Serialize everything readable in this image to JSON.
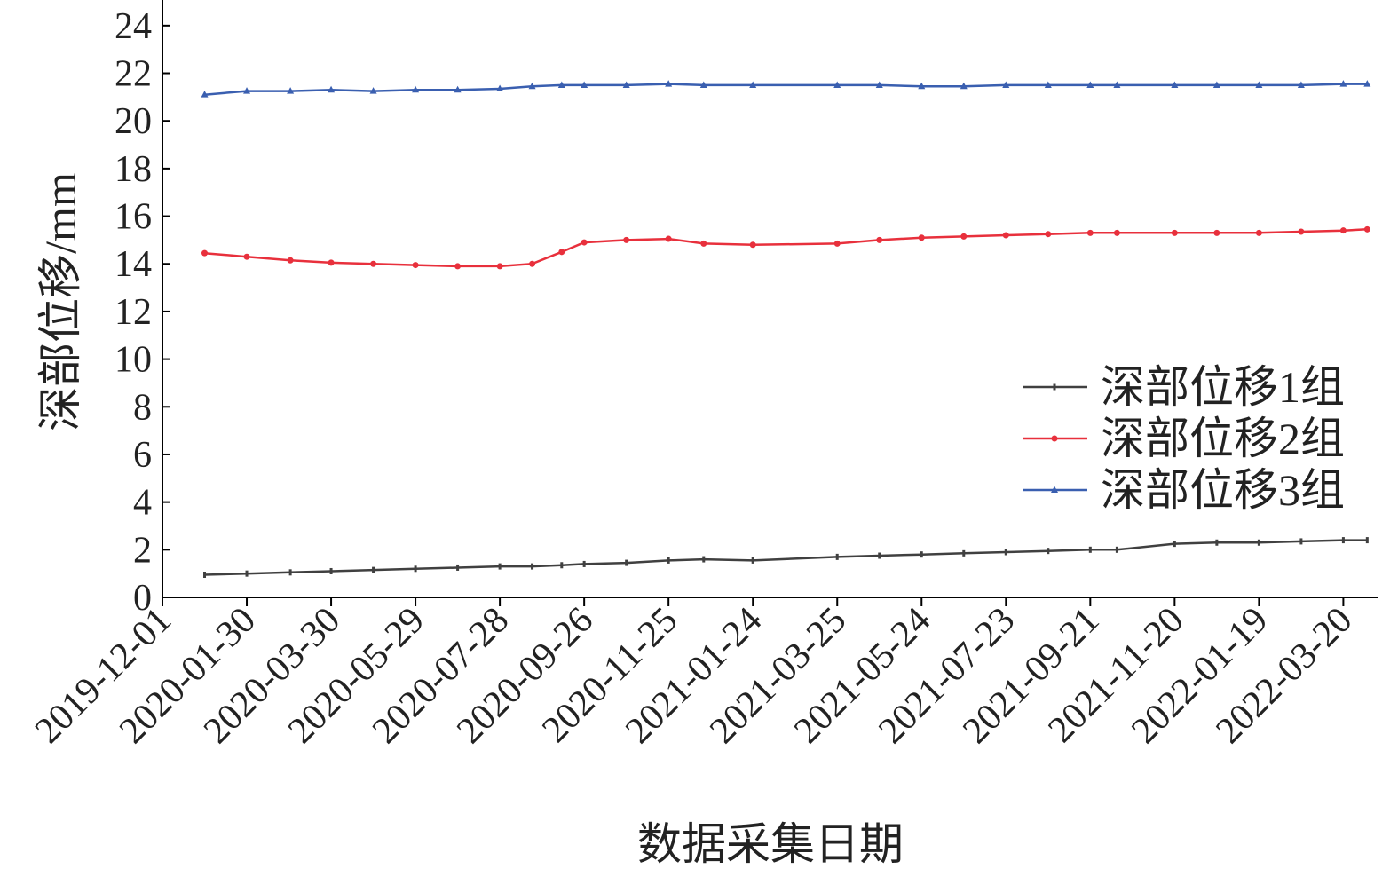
{
  "chart_data": {
    "type": "line",
    "x_label": "数据采集日期",
    "y_label": "深部位移/mm",
    "x": [
      "2019-12-31",
      "2020-01-30",
      "2020-03-01",
      "2020-03-30",
      "2020-04-29",
      "2020-05-29",
      "2020-06-28",
      "2020-07-28",
      "2020-08-20",
      "2020-09-10",
      "2020-09-26",
      "2020-10-26",
      "2020-11-25",
      "2020-12-20",
      "2021-01-24",
      "2021-03-25",
      "2021-04-24",
      "2021-05-24",
      "2021-06-23",
      "2021-07-23",
      "2021-08-22",
      "2021-09-21",
      "2021-10-10",
      "2021-11-20",
      "2021-12-20",
      "2022-01-19",
      "2022-02-18",
      "2022-03-20",
      "2022-04-06"
    ],
    "series": [
      {
        "name": "深部位移1组",
        "color": "#404040",
        "marker": "tick",
        "values": [
          0.95,
          1.0,
          1.05,
          1.1,
          1.15,
          1.2,
          1.25,
          1.3,
          1.3,
          1.35,
          1.4,
          1.45,
          1.55,
          1.6,
          1.55,
          1.7,
          1.75,
          1.8,
          1.85,
          1.9,
          1.95,
          2.0,
          2.0,
          2.25,
          2.3,
          2.3,
          2.35,
          2.4,
          2.4
        ]
      },
      {
        "name": "深部位移2组",
        "color": "#e8303c",
        "marker": "circle",
        "values": [
          14.45,
          14.3,
          14.15,
          14.05,
          14.0,
          13.95,
          13.9,
          13.9,
          14.0,
          14.5,
          14.9,
          15.0,
          15.05,
          14.85,
          14.8,
          14.85,
          15.0,
          15.1,
          15.15,
          15.2,
          15.25,
          15.3,
          15.3,
          15.3,
          15.3,
          15.3,
          15.35,
          15.4,
          15.45
        ]
      },
      {
        "name": "深部位移3组",
        "color": "#3a5fb0",
        "marker": "triangle",
        "values": [
          21.1,
          21.25,
          21.25,
          21.3,
          21.25,
          21.3,
          21.3,
          21.35,
          21.45,
          21.5,
          21.5,
          21.5,
          21.55,
          21.5,
          21.5,
          21.5,
          21.5,
          21.45,
          21.45,
          21.5,
          21.5,
          21.5,
          21.5,
          21.5,
          21.5,
          21.5,
          21.5,
          21.55,
          21.55
        ]
      }
    ],
    "xlim": [
      "2019-12-01",
      "2022-04-14"
    ],
    "xticks": [
      "2019-12-01",
      "2020-01-30",
      "2020-03-30",
      "2020-05-29",
      "2020-07-28",
      "2020-09-26",
      "2020-11-25",
      "2021-01-24",
      "2021-03-25",
      "2021-05-24",
      "2021-07-23",
      "2021-09-21",
      "2021-11-20",
      "2022-01-19",
      "2022-03-20"
    ],
    "ylim": [
      0,
      25
    ],
    "yticks": [
      0,
      2,
      4,
      6,
      8,
      10,
      12,
      14,
      16,
      18,
      20,
      22,
      24
    ],
    "legend": "right"
  }
}
